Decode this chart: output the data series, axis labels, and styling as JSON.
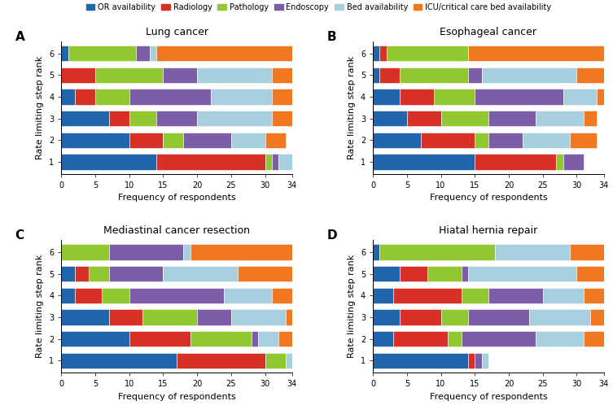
{
  "colors": {
    "OR": "#2166ac",
    "Radiology": "#d73027",
    "Pathology": "#91c832",
    "Endoscopy": "#7b5ea7",
    "Bed": "#a8cfe0",
    "ICU": "#f07820"
  },
  "legend_labels": [
    "OR availability",
    "Radiology",
    "Pathology",
    "Endoscopy",
    "Bed availability",
    "ICU/critical care bed availability"
  ],
  "subplots": {
    "A": {
      "title": "Lung cancer",
      "data": {
        "1": [
          14,
          16,
          1,
          1,
          2,
          0
        ],
        "2": [
          10,
          5,
          3,
          7,
          5,
          3
        ],
        "3": [
          7,
          3,
          4,
          6,
          11,
          3
        ],
        "4": [
          2,
          3,
          5,
          12,
          9,
          3
        ],
        "5": [
          0,
          5,
          10,
          5,
          11,
          4
        ],
        "6": [
          1,
          0,
          10,
          2,
          1,
          20
        ]
      }
    },
    "B": {
      "title": "Esophageal cancer",
      "data": {
        "1": [
          15,
          12,
          1,
          3,
          0,
          0
        ],
        "2": [
          7,
          8,
          2,
          5,
          7,
          4
        ],
        "3": [
          5,
          5,
          7,
          7,
          7,
          2
        ],
        "4": [
          4,
          5,
          6,
          13,
          5,
          1
        ],
        "5": [
          1,
          3,
          10,
          2,
          14,
          4
        ],
        "6": [
          1,
          1,
          12,
          0,
          0,
          20
        ]
      }
    },
    "C": {
      "title": "Mediastinal cancer resection",
      "data": {
        "1": [
          17,
          13,
          3,
          0,
          1,
          0
        ],
        "2": [
          10,
          9,
          9,
          1,
          3,
          2
        ],
        "3": [
          7,
          5,
          8,
          5,
          8,
          1
        ],
        "4": [
          2,
          4,
          4,
          14,
          7,
          3
        ],
        "5": [
          2,
          2,
          3,
          8,
          11,
          8
        ],
        "6": [
          0,
          0,
          7,
          11,
          1,
          15
        ]
      }
    },
    "D": {
      "title": "Hiatal hernia repair",
      "data": {
        "1": [
          14,
          1,
          0,
          1,
          1,
          0
        ],
        "2": [
          3,
          8,
          2,
          11,
          7,
          3
        ],
        "3": [
          4,
          6,
          4,
          9,
          9,
          2
        ],
        "4": [
          3,
          10,
          4,
          8,
          6,
          3
        ],
        "5": [
          4,
          4,
          5,
          1,
          16,
          4
        ],
        "6": [
          1,
          0,
          17,
          0,
          11,
          5
        ]
      }
    }
  },
  "xlabel": "Frequency of respondents",
  "ylabel": "Rate limiting step rank",
  "yticks": [
    1,
    2,
    3,
    4,
    5,
    6
  ]
}
